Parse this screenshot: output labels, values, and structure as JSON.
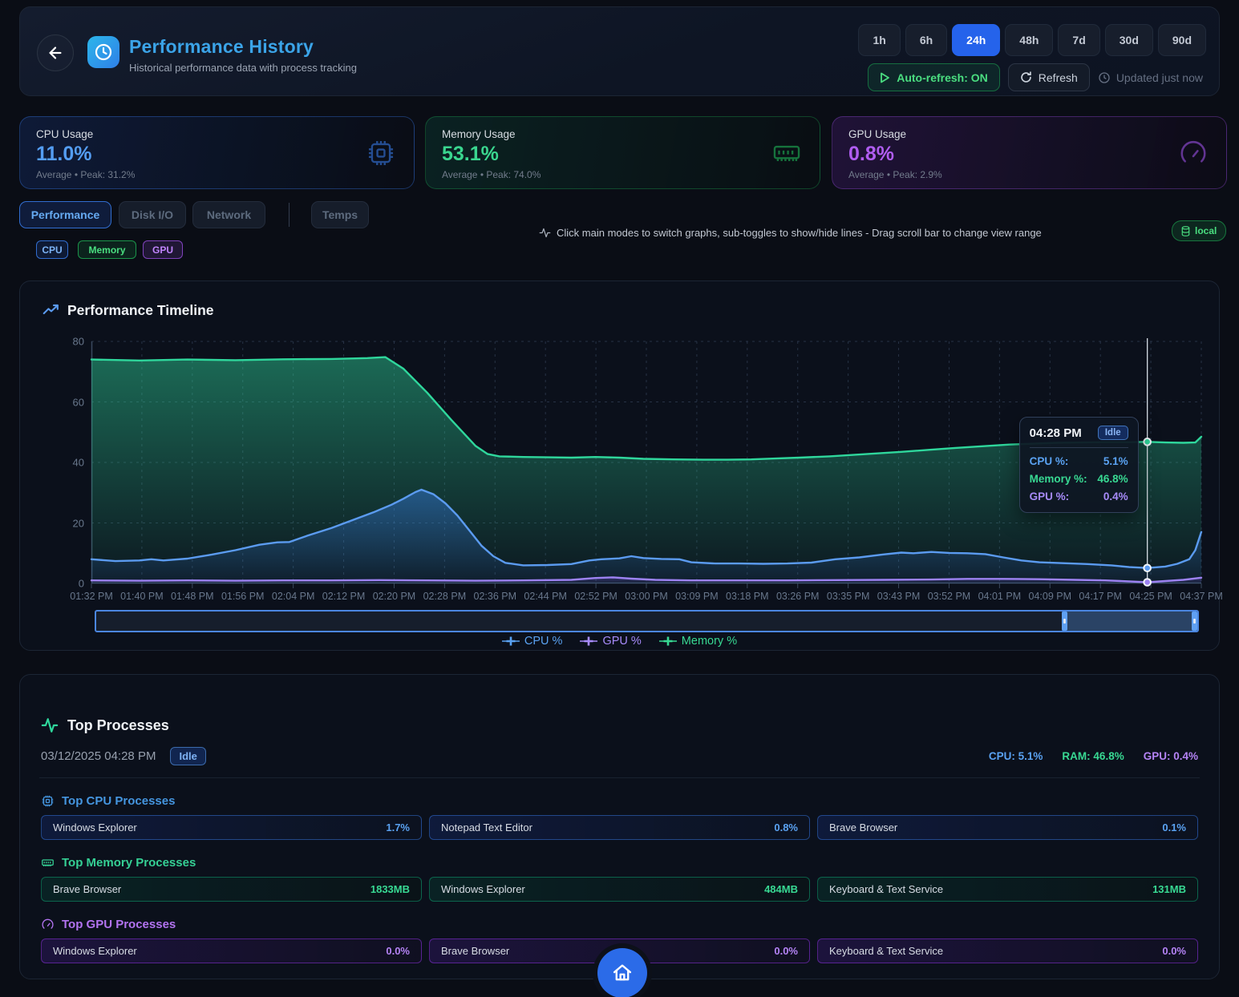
{
  "header": {
    "title": "Performance History",
    "subtitle": "Historical performance data with process tracking",
    "time_ranges": [
      "1h",
      "6h",
      "24h",
      "48h",
      "7d",
      "30d",
      "90d"
    ],
    "active_range": "24h",
    "auto_refresh_label": "Auto-refresh: ON",
    "refresh_label": "Refresh",
    "updated_label": "Updated just now"
  },
  "stats": [
    {
      "label": "CPU Usage",
      "value": "11.0%",
      "sub": "Average • Peak: 31.2%",
      "accent": "#549df2"
    },
    {
      "label": "Memory Usage",
      "value": "53.1%",
      "sub": "Average • Peak: 74.0%",
      "accent": "#3ad68f"
    },
    {
      "label": "GPU Usage",
      "value": "0.8%",
      "sub": "Average • Peak: 2.9%",
      "accent": "#b05df0"
    }
  ],
  "tabs": {
    "modes": [
      "Performance",
      "Disk I/O",
      "Network",
      "Temps"
    ],
    "active": "Performance",
    "sub_toggles": [
      "CPU",
      "Memory",
      "GPU"
    ]
  },
  "hint": "Click main modes to switch graphs, sub-toggles to show/hide lines - Drag scroll bar to change view range",
  "source_badge": "local",
  "chart_data": {
    "type": "area",
    "title": "Performance Timeline",
    "ylim": [
      0,
      80
    ],
    "yticks": [
      0,
      20,
      40,
      60,
      80
    ],
    "x_range_minutes": [
      0,
      185
    ],
    "x_labels": [
      "01:32 PM",
      "01:40 PM",
      "01:48 PM",
      "01:56 PM",
      "02:04 PM",
      "02:12 PM",
      "02:20 PM",
      "02:28 PM",
      "02:36 PM",
      "02:44 PM",
      "02:52 PM",
      "03:00 PM",
      "03:09 PM",
      "03:18 PM",
      "03:26 PM",
      "03:35 PM",
      "03:43 PM",
      "03:52 PM",
      "04:01 PM",
      "04:09 PM",
      "04:17 PM",
      "04:25 PM",
      "04:37 PM"
    ],
    "legend": [
      "CPU %",
      "GPU %",
      "Memory %"
    ],
    "series": [
      {
        "key": "mem",
        "name": "Memory %",
        "color": "#2fd79c",
        "points": [
          [
            0,
            74
          ],
          [
            8,
            73.7
          ],
          [
            16,
            74
          ],
          [
            24,
            73.8
          ],
          [
            32,
            74.1
          ],
          [
            40,
            74.2
          ],
          [
            46,
            74.5
          ],
          [
            49,
            74.8
          ],
          [
            52,
            71
          ],
          [
            56,
            63
          ],
          [
            60,
            54
          ],
          [
            64,
            45.5
          ],
          [
            66,
            42.8
          ],
          [
            68,
            42
          ],
          [
            72,
            41.8
          ],
          [
            76,
            41.7
          ],
          [
            80,
            41.6
          ],
          [
            84,
            41.8
          ],
          [
            88,
            41.6
          ],
          [
            92,
            41.2
          ],
          [
            97,
            41
          ],
          [
            102,
            40.9
          ],
          [
            106,
            40.9
          ],
          [
            110,
            41
          ],
          [
            114,
            41.3
          ],
          [
            118,
            41.6
          ],
          [
            123,
            42
          ],
          [
            127,
            42.5
          ],
          [
            131,
            43
          ],
          [
            135,
            43.5
          ],
          [
            140,
            44.2
          ],
          [
            144,
            44.8
          ],
          [
            149,
            45.4
          ],
          [
            153,
            45.9
          ],
          [
            157,
            46.2
          ],
          [
            161,
            46.5
          ],
          [
            165,
            46.6
          ],
          [
            169,
            46.7
          ],
          [
            173,
            46.7
          ],
          [
            176,
            46.8
          ],
          [
            179,
            46.6
          ],
          [
            182,
            46.5
          ],
          [
            184,
            46.6
          ],
          [
            185,
            48.5
          ]
        ]
      },
      {
        "key": "cpu",
        "name": "CPU %",
        "color": "#5b9bf0",
        "points": [
          [
            0,
            8
          ],
          [
            4,
            7.4
          ],
          [
            8,
            7.6
          ],
          [
            10,
            8
          ],
          [
            12,
            7.6
          ],
          [
            16,
            8.2
          ],
          [
            20,
            9.5
          ],
          [
            24,
            11
          ],
          [
            28,
            12.8
          ],
          [
            31,
            13.6
          ],
          [
            33,
            13.7
          ],
          [
            36,
            15.8
          ],
          [
            40,
            18.3
          ],
          [
            44,
            21.3
          ],
          [
            47,
            23.5
          ],
          [
            50,
            26
          ],
          [
            52,
            28
          ],
          [
            54,
            30.2
          ],
          [
            55,
            31
          ],
          [
            57,
            29.5
          ],
          [
            59,
            26.5
          ],
          [
            61,
            22.5
          ],
          [
            63,
            17.5
          ],
          [
            65,
            12.5
          ],
          [
            67,
            9
          ],
          [
            69,
            6.8
          ],
          [
            72,
            6
          ],
          [
            76,
            6.1
          ],
          [
            80,
            6.4
          ],
          [
            83,
            7.6
          ],
          [
            85,
            8
          ],
          [
            88,
            8.3
          ],
          [
            90,
            9
          ],
          [
            92,
            8.4
          ],
          [
            95,
            8.1
          ],
          [
            98,
            8
          ],
          [
            100,
            7
          ],
          [
            104,
            6.6
          ],
          [
            108,
            6.6
          ],
          [
            112,
            6.5
          ],
          [
            116,
            6.6
          ],
          [
            120,
            6.9
          ],
          [
            124,
            8
          ],
          [
            128,
            8.6
          ],
          [
            132,
            9.6
          ],
          [
            135,
            10.2
          ],
          [
            137,
            10
          ],
          [
            140,
            10.4
          ],
          [
            143,
            10.1
          ],
          [
            146,
            10
          ],
          [
            149,
            9.7
          ],
          [
            152,
            8.6
          ],
          [
            155,
            7.6
          ],
          [
            158,
            7
          ],
          [
            162,
            6.7
          ],
          [
            166,
            6.4
          ],
          [
            170,
            6
          ],
          [
            173,
            5.4
          ],
          [
            176,
            5.1
          ],
          [
            179,
            5.6
          ],
          [
            181,
            6.5
          ],
          [
            183,
            8
          ],
          [
            184,
            11
          ],
          [
            185,
            17
          ]
        ]
      },
      {
        "key": "gpu",
        "name": "GPU %",
        "color": "#9d82f2",
        "points": [
          [
            0,
            1
          ],
          [
            8,
            0.9
          ],
          [
            16,
            1
          ],
          [
            24,
            0.9
          ],
          [
            32,
            1
          ],
          [
            40,
            1
          ],
          [
            48,
            1.1
          ],
          [
            56,
            1
          ],
          [
            64,
            0.9
          ],
          [
            72,
            1
          ],
          [
            80,
            1.2
          ],
          [
            84,
            1.8
          ],
          [
            87,
            2
          ],
          [
            90,
            1.6
          ],
          [
            94,
            1.2
          ],
          [
            100,
            1
          ],
          [
            108,
            1
          ],
          [
            116,
            1
          ],
          [
            124,
            1.1
          ],
          [
            132,
            1.2
          ],
          [
            140,
            1.3
          ],
          [
            146,
            1.5
          ],
          [
            152,
            1.5
          ],
          [
            158,
            1.4
          ],
          [
            164,
            1.2
          ],
          [
            169,
            1
          ],
          [
            173,
            0.7
          ],
          [
            176,
            0.4
          ],
          [
            179,
            0.8
          ],
          [
            182,
            1.2
          ],
          [
            185,
            1.9
          ]
        ]
      }
    ],
    "tooltip": {
      "time": "04:28 PM",
      "badge": "Idle",
      "minute": 176,
      "values": {
        "cpu": 5.1,
        "mem": 46.8,
        "gpu": 0.4
      },
      "rows": [
        {
          "label": "CPU %:",
          "value": "5.1%"
        },
        {
          "label": "Memory %:",
          "value": "46.8%"
        },
        {
          "label": "GPU %:",
          "value": "0.4%"
        }
      ]
    },
    "scrollbar": {
      "view_start": 0.877,
      "view_end": 1.0
    }
  },
  "top_processes": {
    "title": "Top Processes",
    "timestamp": "03/12/2025 04:28 PM",
    "state_badge": "Idle",
    "summary": [
      {
        "label": "CPU:",
        "value": "5.1%"
      },
      {
        "label": "RAM:",
        "value": "46.8%"
      },
      {
        "label": "GPU:",
        "value": "0.4%"
      }
    ],
    "sections": [
      {
        "title": "Top CPU Processes",
        "items": [
          {
            "name": "Windows Explorer",
            "value": "1.7%"
          },
          {
            "name": "Notepad Text Editor",
            "value": "0.8%"
          },
          {
            "name": "Brave Browser",
            "value": "0.1%"
          }
        ]
      },
      {
        "title": "Top Memory Processes",
        "items": [
          {
            "name": "Brave Browser",
            "value": "1833MB"
          },
          {
            "name": "Windows Explorer",
            "value": "484MB"
          },
          {
            "name": "Keyboard & Text Service",
            "value": "131MB"
          }
        ]
      },
      {
        "title": "Top GPU Processes",
        "items": [
          {
            "name": "Windows Explorer",
            "value": "0.0%"
          },
          {
            "name": "Brave Browser",
            "value": "0.0%"
          },
          {
            "name": "Keyboard & Text Service",
            "value": "0.0%"
          }
        ]
      }
    ]
  }
}
